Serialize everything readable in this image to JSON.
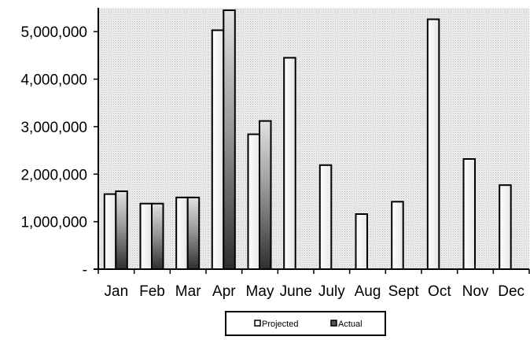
{
  "chart_data": {
    "type": "bar",
    "title": "",
    "xlabel": "",
    "ylabel": "",
    "categories": [
      "Jan",
      "Feb",
      "Mar",
      "Apr",
      "May",
      "June",
      "July",
      "Aug",
      "Sept",
      "Oct",
      "Nov",
      "Dec"
    ],
    "series": [
      {
        "name": "Projected",
        "values": [
          1580000,
          1380000,
          1510000,
          5030000,
          2840000,
          4450000,
          2190000,
          1160000,
          1420000,
          5260000,
          2320000,
          1770000
        ],
        "color": "#f2f2f2"
      },
      {
        "name": "Actual",
        "values": [
          1640000,
          1380000,
          1510000,
          5450000,
          3120000,
          null,
          null,
          null,
          null,
          null,
          null,
          null
        ],
        "color": "#555555"
      }
    ],
    "ylim": [
      0,
      5500000
    ],
    "yticks": [
      0,
      1000000,
      2000000,
      3000000,
      4000000,
      5000000
    ],
    "ytick_labels": [
      "-",
      "1,000,000",
      "2,000,000",
      "3,000,000",
      "4,000,000",
      "5,000,000"
    ],
    "grid": false,
    "plot_background": "dotted-gray",
    "legend_position": "bottom-center"
  }
}
